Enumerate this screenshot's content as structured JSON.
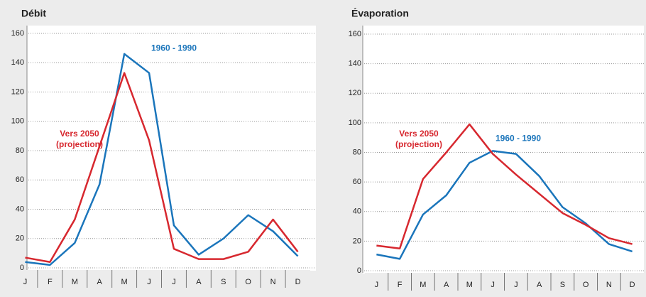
{
  "chart_data": [
    {
      "type": "line",
      "title": "Débit",
      "categories": [
        "J",
        "F",
        "M",
        "A",
        "M",
        "J",
        "J",
        "A",
        "S",
        "O",
        "N",
        "D"
      ],
      "series": [
        {
          "name": "1960 - 1990",
          "color": "#1a75bb",
          "values": [
            4,
            2,
            17,
            57,
            146,
            133,
            29,
            9,
            20,
            36,
            25,
            8
          ]
        },
        {
          "name": "Vers 2050 (projection)",
          "color": "#d7282f",
          "values": [
            7,
            4,
            33,
            83,
            133,
            87,
            13,
            6,
            6,
            11,
            33,
            11
          ]
        }
      ],
      "ylim": [
        0,
        160
      ],
      "yticks": [
        0,
        20,
        40,
        60,
        80,
        100,
        120,
        140,
        160
      ],
      "grid": true
    },
    {
      "type": "line",
      "title": "Évaporation",
      "categories": [
        "J",
        "F",
        "M",
        "A",
        "M",
        "J",
        "J",
        "A",
        "S",
        "O",
        "N",
        "D"
      ],
      "series": [
        {
          "name": "1960 - 1990",
          "color": "#1a75bb",
          "values": [
            11,
            8,
            38,
            51,
            73,
            81,
            79,
            64,
            43,
            32,
            18,
            13
          ]
        },
        {
          "name": "Vers 2050 (projection)",
          "color": "#d7282f",
          "values": [
            17,
            15,
            62,
            80,
            99,
            79,
            65,
            52,
            39,
            31,
            22,
            18
          ]
        }
      ],
      "ylim": [
        0,
        160
      ],
      "yticks": [
        0,
        20,
        40,
        60,
        80,
        100,
        120,
        140,
        160
      ],
      "grid": true
    }
  ]
}
